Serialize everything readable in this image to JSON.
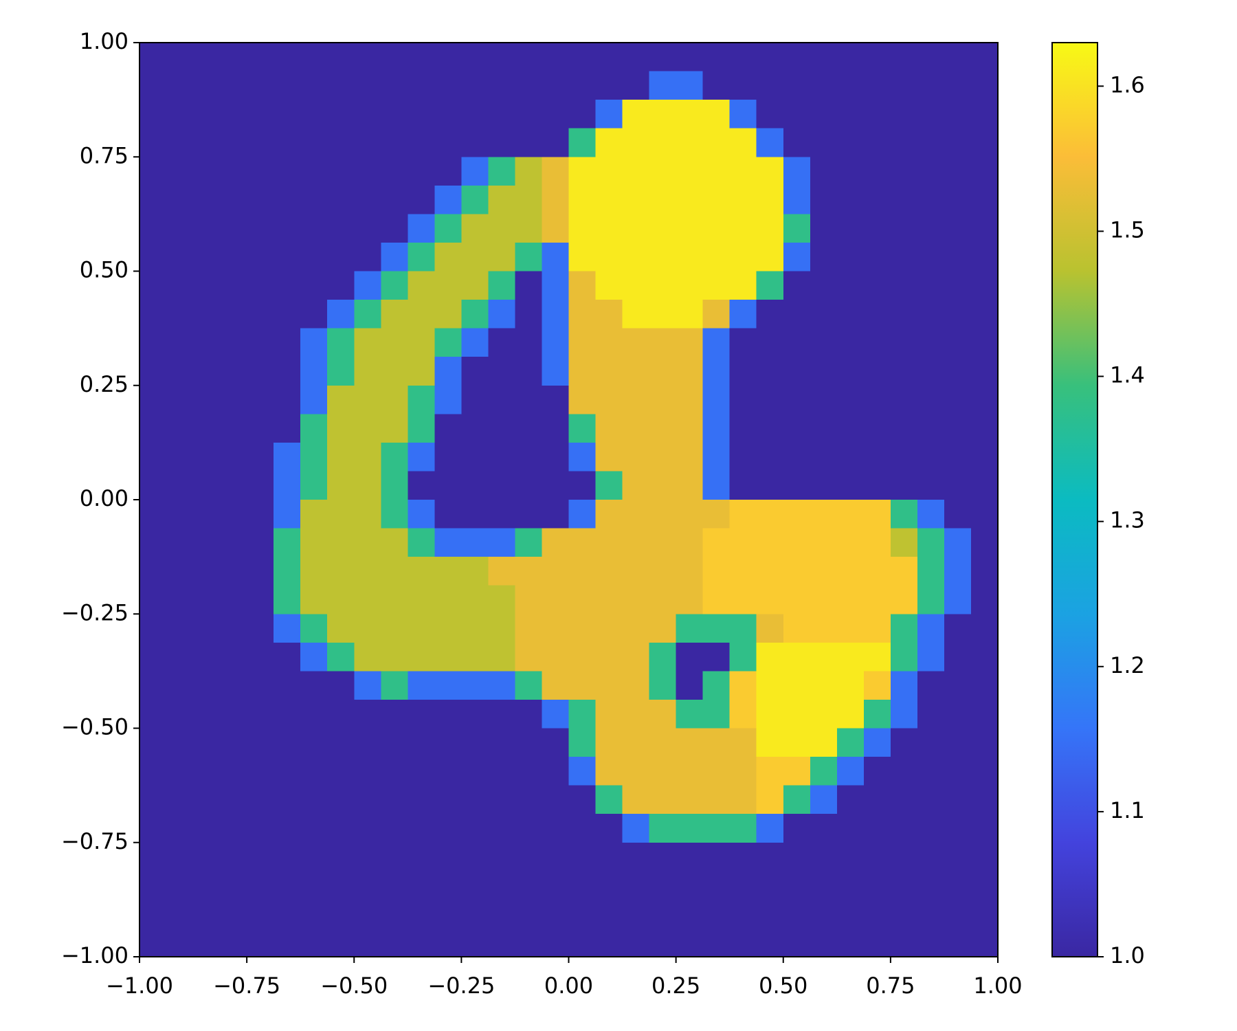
{
  "chart_data": {
    "type": "heatmap",
    "xlim": [
      -1,
      1
    ],
    "ylim": [
      -1,
      1
    ],
    "origin": "upper",
    "xticks": [
      {
        "value": -1,
        "label": "−1.00"
      },
      {
        "value": -0.75,
        "label": "−0.75"
      },
      {
        "value": -0.5,
        "label": "−0.50"
      },
      {
        "value": -0.25,
        "label": "−0.25"
      },
      {
        "value": 0,
        "label": "0.00"
      },
      {
        "value": 0.25,
        "label": "0.25"
      },
      {
        "value": 0.5,
        "label": "0.50"
      },
      {
        "value": 0.75,
        "label": "0.75"
      },
      {
        "value": 1,
        "label": "1.00"
      }
    ],
    "yticks": [
      {
        "value": -1,
        "label": "−1.00"
      },
      {
        "value": -0.75,
        "label": "−0.75"
      },
      {
        "value": -0.5,
        "label": "−0.50"
      },
      {
        "value": -0.25,
        "label": "−0.25"
      },
      {
        "value": 0,
        "label": "0.00"
      },
      {
        "value": 0.25,
        "label": "0.25"
      },
      {
        "value": 0.5,
        "label": "0.50"
      },
      {
        "value": 0.75,
        "label": "0.75"
      },
      {
        "value": 1,
        "label": "1.00"
      }
    ],
    "colorbar": {
      "clim": [
        1,
        1.63
      ],
      "ticks": [
        {
          "value": 1,
          "label": "1.0"
        },
        1.1,
        1.2,
        1.3,
        1.4,
        1.5,
        1.6
      ],
      "colormap": [
        "#3a27a2",
        "#4343dd",
        "#3575f8",
        "#1ba2e2",
        "#0bbbc1",
        "#38c07c",
        "#b9c230",
        "#fbbd38",
        "#f8f915"
      ]
    },
    "z": [
      [
        1,
        1,
        1,
        1,
        1,
        1,
        1,
        1,
        1,
        1,
        1,
        1,
        1,
        1,
        1,
        1,
        1,
        1,
        1,
        1,
        1,
        1,
        1,
        1,
        1,
        1,
        1,
        1,
        1,
        1,
        1,
        1
      ],
      [
        1,
        1,
        1,
        1,
        1,
        1,
        1,
        1,
        1,
        1,
        1,
        1,
        1,
        1,
        1,
        1,
        1,
        1,
        1,
        1.15,
        1.15,
        1,
        1,
        1,
        1,
        1,
        1,
        1,
        1,
        1,
        1,
        1
      ],
      [
        1,
        1,
        1,
        1,
        1,
        1,
        1,
        1,
        1,
        1,
        1,
        1,
        1,
        1,
        1,
        1,
        1,
        1.15,
        1.61,
        1.61,
        1.61,
        1.61,
        1.15,
        1,
        1,
        1,
        1,
        1,
        1,
        1,
        1,
        1
      ],
      [
        1,
        1,
        1,
        1,
        1,
        1,
        1,
        1,
        1,
        1,
        1,
        1,
        1,
        1,
        1,
        1,
        1.38,
        1.61,
        1.61,
        1.61,
        1.61,
        1.61,
        1.61,
        1.15,
        1,
        1,
        1,
        1,
        1,
        1,
        1,
        1
      ],
      [
        1,
        1,
        1,
        1,
        1,
        1,
        1,
        1,
        1,
        1,
        1,
        1,
        1.15,
        1.38,
        1.48,
        1.53,
        1.61,
        1.61,
        1.61,
        1.61,
        1.61,
        1.61,
        1.61,
        1.61,
        1.15,
        1,
        1,
        1,
        1,
        1,
        1,
        1
      ],
      [
        1,
        1,
        1,
        1,
        1,
        1,
        1,
        1,
        1,
        1,
        1,
        1.15,
        1.38,
        1.48,
        1.48,
        1.53,
        1.61,
        1.61,
        1.61,
        1.61,
        1.61,
        1.61,
        1.61,
        1.61,
        1.15,
        1,
        1,
        1,
        1,
        1,
        1,
        1
      ],
      [
        1,
        1,
        1,
        1,
        1,
        1,
        1,
        1,
        1,
        1,
        1.15,
        1.38,
        1.48,
        1.48,
        1.48,
        1.53,
        1.61,
        1.61,
        1.61,
        1.61,
        1.61,
        1.61,
        1.61,
        1.61,
        1.38,
        1,
        1,
        1,
        1,
        1,
        1,
        1
      ],
      [
        1,
        1,
        1,
        1,
        1,
        1,
        1,
        1,
        1,
        1.15,
        1.38,
        1.48,
        1.48,
        1.48,
        1.38,
        1.15,
        1.61,
        1.61,
        1.61,
        1.61,
        1.61,
        1.61,
        1.61,
        1.61,
        1.15,
        1,
        1,
        1,
        1,
        1,
        1,
        1
      ],
      [
        1,
        1,
        1,
        1,
        1,
        1,
        1,
        1,
        1.15,
        1.38,
        1.48,
        1.48,
        1.48,
        1.38,
        1,
        1.15,
        1.53,
        1.61,
        1.61,
        1.61,
        1.61,
        1.61,
        1.61,
        1.38,
        1,
        1,
        1,
        1,
        1,
        1,
        1,
        1
      ],
      [
        1,
        1,
        1,
        1,
        1,
        1,
        1,
        1.15,
        1.38,
        1.48,
        1.48,
        1.48,
        1.38,
        1.15,
        1,
        1.15,
        1.53,
        1.53,
        1.61,
        1.61,
        1.61,
        1.53,
        1.15,
        1,
        1,
        1,
        1,
        1,
        1,
        1,
        1,
        1
      ],
      [
        1,
        1,
        1,
        1,
        1,
        1,
        1.15,
        1.38,
        1.48,
        1.48,
        1.48,
        1.38,
        1.15,
        1,
        1,
        1.15,
        1.53,
        1.53,
        1.53,
        1.53,
        1.53,
        1.15,
        1,
        1,
        1,
        1,
        1,
        1,
        1,
        1,
        1,
        1
      ],
      [
        1,
        1,
        1,
        1,
        1,
        1,
        1.15,
        1.38,
        1.48,
        1.48,
        1.48,
        1.15,
        1,
        1,
        1,
        1.15,
        1.53,
        1.53,
        1.53,
        1.53,
        1.53,
        1.15,
        1,
        1,
        1,
        1,
        1,
        1,
        1,
        1,
        1,
        1
      ],
      [
        1,
        1,
        1,
        1,
        1,
        1,
        1.15,
        1.48,
        1.48,
        1.48,
        1.38,
        1.15,
        1,
        1,
        1,
        1,
        1.53,
        1.53,
        1.53,
        1.53,
        1.53,
        1.15,
        1,
        1,
        1,
        1,
        1,
        1,
        1,
        1,
        1,
        1
      ],
      [
        1,
        1,
        1,
        1,
        1,
        1,
        1.38,
        1.48,
        1.48,
        1.48,
        1.38,
        1,
        1,
        1,
        1,
        1,
        1.38,
        1.53,
        1.53,
        1.53,
        1.53,
        1.15,
        1,
        1,
        1,
        1,
        1,
        1,
        1,
        1,
        1,
        1
      ],
      [
        1,
        1,
        1,
        1,
        1,
        1.15,
        1.38,
        1.48,
        1.48,
        1.38,
        1.15,
        1,
        1,
        1,
        1,
        1,
        1.15,
        1.53,
        1.53,
        1.53,
        1.53,
        1.15,
        1,
        1,
        1,
        1,
        1,
        1,
        1,
        1,
        1,
        1
      ],
      [
        1,
        1,
        1,
        1,
        1,
        1.15,
        1.38,
        1.48,
        1.48,
        1.38,
        1,
        1,
        1,
        1,
        1,
        1,
        1,
        1.38,
        1.53,
        1.53,
        1.53,
        1.15,
        1,
        1,
        1,
        1,
        1,
        1,
        1,
        1,
        1,
        1
      ],
      [
        1,
        1,
        1,
        1,
        1,
        1.15,
        1.48,
        1.48,
        1.48,
        1.38,
        1.15,
        1,
        1,
        1,
        1,
        1,
        1.15,
        1.53,
        1.53,
        1.53,
        1.53,
        1.53,
        1.57,
        1.57,
        1.57,
        1.57,
        1.57,
        1.57,
        1.38,
        1.15,
        1,
        1
      ],
      [
        1,
        1,
        1,
        1,
        1,
        1.38,
        1.48,
        1.48,
        1.48,
        1.48,
        1.38,
        1.15,
        1.15,
        1.15,
        1.38,
        1.53,
        1.53,
        1.53,
        1.53,
        1.53,
        1.53,
        1.57,
        1.57,
        1.57,
        1.57,
        1.57,
        1.57,
        1.57,
        1.48,
        1.38,
        1.15,
        1
      ],
      [
        1,
        1,
        1,
        1,
        1,
        1.38,
        1.48,
        1.48,
        1.48,
        1.48,
        1.48,
        1.48,
        1.48,
        1.53,
        1.53,
        1.53,
        1.53,
        1.53,
        1.53,
        1.53,
        1.53,
        1.57,
        1.57,
        1.57,
        1.57,
        1.57,
        1.57,
        1.57,
        1.57,
        1.38,
        1.15,
        1
      ],
      [
        1,
        1,
        1,
        1,
        1,
        1.38,
        1.48,
        1.48,
        1.48,
        1.48,
        1.48,
        1.48,
        1.48,
        1.48,
        1.53,
        1.53,
        1.53,
        1.53,
        1.53,
        1.53,
        1.53,
        1.57,
        1.57,
        1.57,
        1.57,
        1.57,
        1.57,
        1.57,
        1.57,
        1.38,
        1.15,
        1
      ],
      [
        1,
        1,
        1,
        1,
        1,
        1.15,
        1.38,
        1.48,
        1.48,
        1.48,
        1.48,
        1.48,
        1.48,
        1.48,
        1.53,
        1.53,
        1.53,
        1.53,
        1.53,
        1.53,
        1.38,
        1.38,
        1.38,
        1.53,
        1.57,
        1.57,
        1.57,
        1.57,
        1.38,
        1.15,
        1,
        1
      ],
      [
        1,
        1,
        1,
        1,
        1,
        1,
        1.15,
        1.38,
        1.48,
        1.48,
        1.48,
        1.48,
        1.48,
        1.48,
        1.53,
        1.53,
        1.53,
        1.53,
        1.53,
        1.38,
        1,
        1,
        1.38,
        1.61,
        1.61,
        1.61,
        1.61,
        1.61,
        1.38,
        1.15,
        1,
        1
      ],
      [
        1,
        1,
        1,
        1,
        1,
        1,
        1,
        1,
        1.15,
        1.38,
        1.15,
        1.15,
        1.15,
        1.15,
        1.38,
        1.53,
        1.53,
        1.53,
        1.53,
        1.38,
        1,
        1.38,
        1.57,
        1.61,
        1.61,
        1.61,
        1.61,
        1.57,
        1.15,
        1,
        1,
        1
      ],
      [
        1,
        1,
        1,
        1,
        1,
        1,
        1,
        1,
        1,
        1,
        1,
        1,
        1,
        1,
        1,
        1.15,
        1.38,
        1.53,
        1.53,
        1.53,
        1.38,
        1.38,
        1.57,
        1.61,
        1.61,
        1.61,
        1.61,
        1.38,
        1.15,
        1,
        1,
        1
      ],
      [
        1,
        1,
        1,
        1,
        1,
        1,
        1,
        1,
        1,
        1,
        1,
        1,
        1,
        1,
        1,
        1,
        1.38,
        1.53,
        1.53,
        1.53,
        1.53,
        1.53,
        1.53,
        1.61,
        1.61,
        1.61,
        1.38,
        1.15,
        1,
        1,
        1,
        1
      ],
      [
        1,
        1,
        1,
        1,
        1,
        1,
        1,
        1,
        1,
        1,
        1,
        1,
        1,
        1,
        1,
        1,
        1.15,
        1.53,
        1.53,
        1.53,
        1.53,
        1.53,
        1.53,
        1.57,
        1.57,
        1.38,
        1.15,
        1,
        1,
        1,
        1,
        1
      ],
      [
        1,
        1,
        1,
        1,
        1,
        1,
        1,
        1,
        1,
        1,
        1,
        1,
        1,
        1,
        1,
        1,
        1,
        1.38,
        1.53,
        1.53,
        1.53,
        1.53,
        1.53,
        1.57,
        1.38,
        1.15,
        1,
        1,
        1,
        1,
        1,
        1
      ],
      [
        1,
        1,
        1,
        1,
        1,
        1,
        1,
        1,
        1,
        1,
        1,
        1,
        1,
        1,
        1,
        1,
        1,
        1,
        1.15,
        1.38,
        1.38,
        1.38,
        1.38,
        1.15,
        1,
        1,
        1,
        1,
        1,
        1,
        1,
        1
      ],
      [
        1,
        1,
        1,
        1,
        1,
        1,
        1,
        1,
        1,
        1,
        1,
        1,
        1,
        1,
        1,
        1,
        1,
        1,
        1,
        1,
        1,
        1,
        1,
        1,
        1,
        1,
        1,
        1,
        1,
        1,
        1,
        1
      ],
      [
        1,
        1,
        1,
        1,
        1,
        1,
        1,
        1,
        1,
        1,
        1,
        1,
        1,
        1,
        1,
        1,
        1,
        1,
        1,
        1,
        1,
        1,
        1,
        1,
        1,
        1,
        1,
        1,
        1,
        1,
        1,
        1
      ],
      [
        1,
        1,
        1,
        1,
        1,
        1,
        1,
        1,
        1,
        1,
        1,
        1,
        1,
        1,
        1,
        1,
        1,
        1,
        1,
        1,
        1,
        1,
        1,
        1,
        1,
        1,
        1,
        1,
        1,
        1,
        1,
        1
      ],
      [
        1,
        1,
        1,
        1,
        1,
        1,
        1,
        1,
        1,
        1,
        1,
        1,
        1,
        1,
        1,
        1,
        1,
        1,
        1,
        1,
        1,
        1,
        1,
        1,
        1,
        1,
        1,
        1,
        1,
        1,
        1,
        1
      ]
    ]
  }
}
